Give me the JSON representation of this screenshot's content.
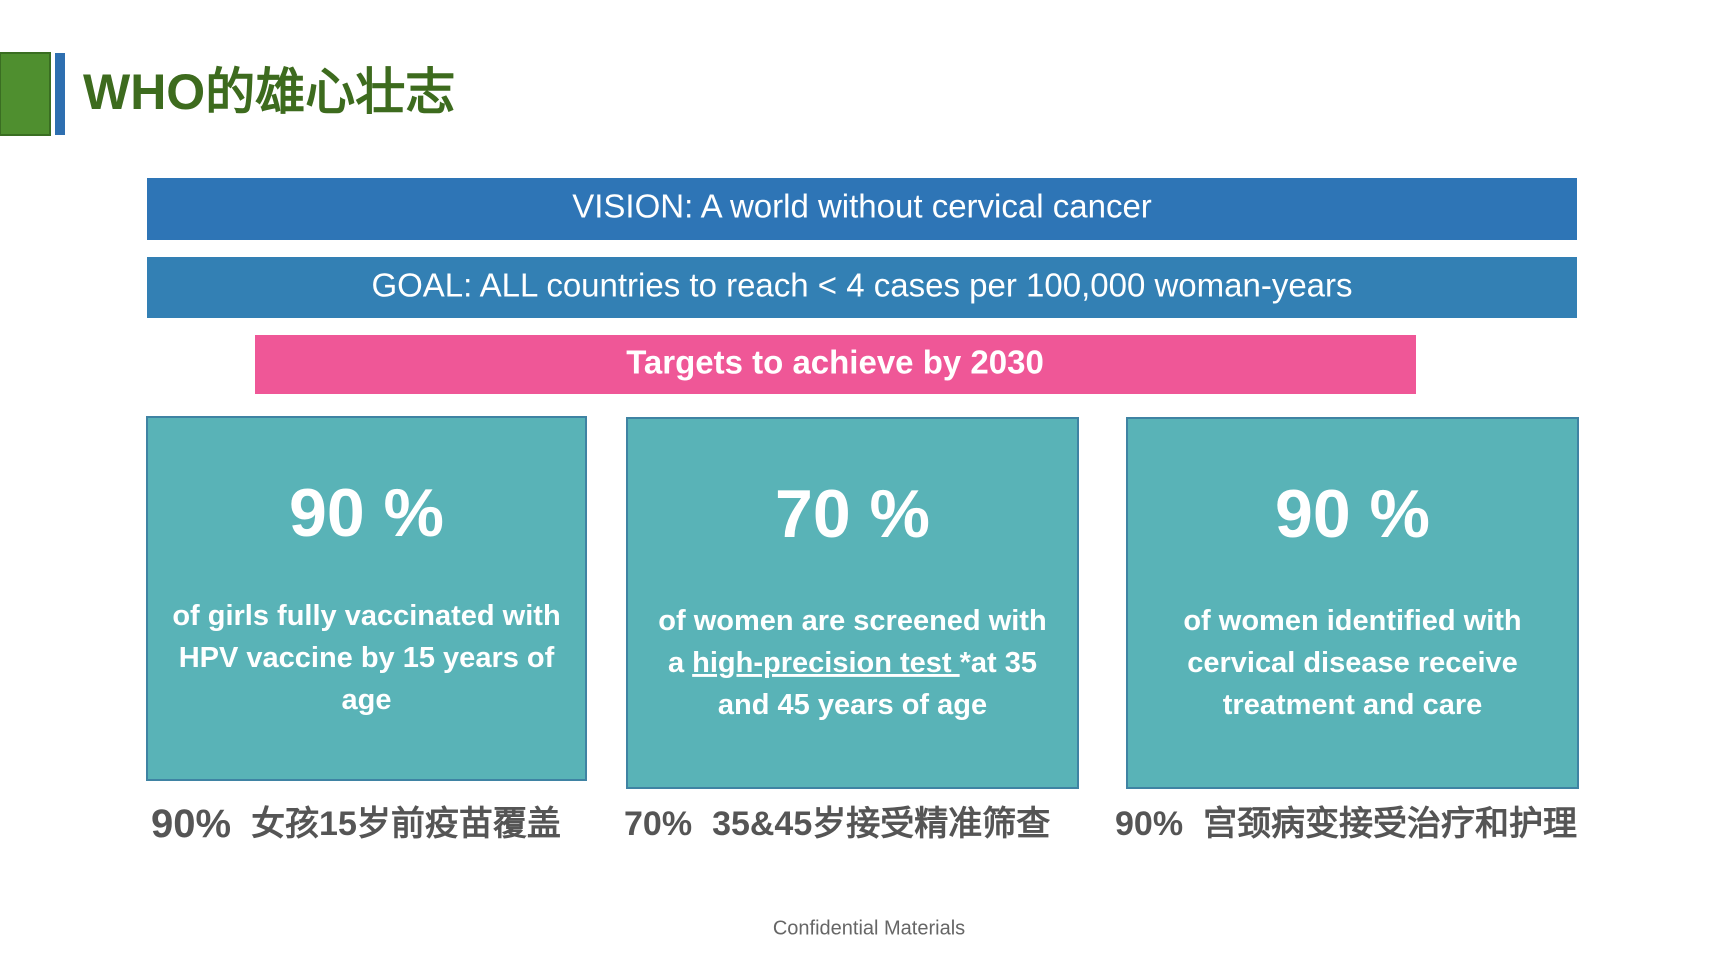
{
  "header": {
    "title": "WHO的雄心壮志"
  },
  "banners": {
    "vision": "VISION: A world without cervical cancer",
    "goal": "GOAL:  ALL countries to reach < 4 cases per 100,000 woman-years",
    "targets": "Targets to achieve by 2030"
  },
  "cards": [
    {
      "percent": "90 %",
      "lines": [
        [
          {
            "text": "of girls fully vaccinated with"
          }
        ],
        [
          {
            "text": "HPV vaccine by 15 years of"
          }
        ],
        [
          {
            "text": "age"
          }
        ]
      ],
      "caption": {
        "percent": "90%",
        "text": "女孩15岁前疫苗覆盖"
      }
    },
    {
      "percent": "70 %",
      "lines": [
        [
          {
            "text": "of women are screened with"
          }
        ],
        [
          {
            "text": "a "
          },
          {
            "text": "high-precision test ",
            "underline": true
          },
          {
            "text": "*at 35"
          }
        ],
        [
          {
            "text": "and 45 years of age"
          }
        ]
      ],
      "caption": {
        "percent": "70%",
        "text": "35&45岁接受精准筛查"
      }
    },
    {
      "percent": "90 %",
      "lines": [
        [
          {
            "text": "of women identified with"
          }
        ],
        [
          {
            "text": "cervical disease receive"
          }
        ],
        [
          {
            "text": "treatment and care"
          }
        ]
      ],
      "caption": {
        "percent": "90%",
        "text": "宫颈病变接受治疗和护理"
      }
    }
  ],
  "footer": "Confidential Materials"
}
